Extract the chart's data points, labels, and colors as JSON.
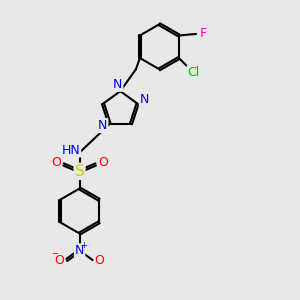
{
  "background_color": "#e8e8e8",
  "atom_colors": {
    "C": "#000000",
    "N": "#0000ff",
    "O": "#ff0000",
    "S": "#cccc00",
    "Cl": "#00bb00",
    "F": "#ff00cc",
    "H": "#7f7f7f"
  },
  "bond_color": "#000000",
  "bond_width": 1.5,
  "dbo": 0.07,
  "font_size": 9,
  "fig_size": [
    3.0,
    3.0
  ],
  "dpi": 100,
  "xlim": [
    0.0,
    8.5
  ],
  "ylim": [
    -0.5,
    9.0
  ]
}
